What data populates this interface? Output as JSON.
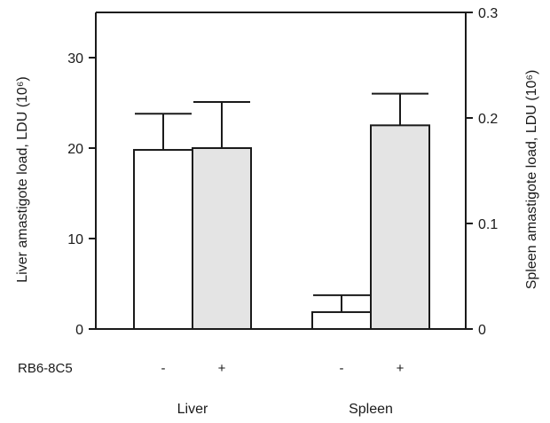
{
  "chart_data": {
    "type": "bar",
    "groups": [
      "Liver",
      "Spleen"
    ],
    "row_label": "RB6-8C5",
    "treatment_symbols": [
      "-",
      "+"
    ],
    "left_axis": {
      "label": "Liver amastigote load, LDU (10⁶)",
      "ylim": [
        0,
        35
      ],
      "ticks": [
        0,
        10,
        20,
        30
      ]
    },
    "right_axis": {
      "label": "Spleen amastigote load, LDU (10⁶)",
      "ylim": [
        0,
        0.3
      ],
      "ticks": [
        0,
        0.1,
        0.2,
        0.3
      ],
      "tick_labels": [
        "0",
        "0.1",
        "0.2",
        "0.3"
      ]
    },
    "bars": [
      {
        "group": "Liver",
        "treatment": "-",
        "axis": "left",
        "value": 19.8,
        "error": 4.0,
        "fill": "#ffffff"
      },
      {
        "group": "Liver",
        "treatment": "+",
        "axis": "left",
        "value": 20.0,
        "error": 5.1,
        "fill": "#e4e4e4"
      },
      {
        "group": "Spleen",
        "treatment": "-",
        "axis": "right",
        "value": 0.016,
        "error": 0.016,
        "fill": "#ffffff"
      },
      {
        "group": "Spleen",
        "treatment": "+",
        "axis": "right",
        "value": 0.193,
        "error": 0.03,
        "fill": "#e4e4e4"
      }
    ],
    "grid": false,
    "legend": "none"
  }
}
